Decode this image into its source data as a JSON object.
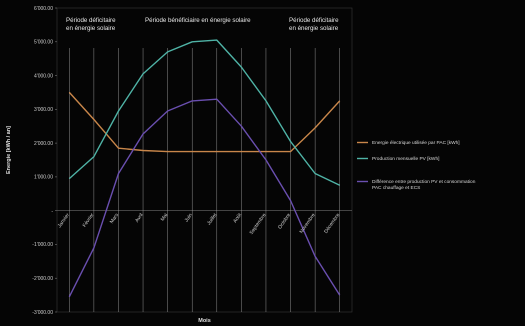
{
  "chart_data": {
    "type": "line",
    "categories": [
      "Janvier",
      "Février",
      "Mars",
      "Avril",
      "Mai",
      "Juin",
      "Juillet",
      "Août",
      "Septembre",
      "Octobre",
      "Novembre",
      "Décembre"
    ],
    "series": [
      {
        "name": "Energie électrique utilisée par PAC [kWh]",
        "color": "#c8864a",
        "values": [
          3500,
          2700,
          1850,
          1780,
          1750,
          1750,
          1750,
          1750,
          1750,
          1750,
          2450,
          3250
        ]
      },
      {
        "name": "Production mensuelle PV [kWh]",
        "color": "#4fb3a6",
        "values": [
          950,
          1600,
          2950,
          4050,
          4700,
          5000,
          5050,
          4250,
          3250,
          2050,
          1100,
          750
        ]
      },
      {
        "name": "Différence entre production PV et consommation PAC chauffage et ECS",
        "color": "#6a4fb0",
        "values": [
          -2550,
          -1100,
          1100,
          2270,
          2950,
          3250,
          3300,
          2500,
          1500,
          300,
          -1350,
          -2500
        ]
      }
    ],
    "ylim": [
      -3000,
      6000
    ],
    "yticks": [
      "6'000.00",
      "5'000.00",
      "4'000.00",
      "3'000.00",
      "2'000.00",
      "1'000.00",
      "-",
      "-1'000.00",
      "-2'000.00",
      "-3'000.00"
    ],
    "ylabel": "Energie [kWh / an]",
    "xlabel": "Mois",
    "grid": true,
    "legend_position": "right",
    "annotations": [
      "Période déficitaire en énergie solaire",
      "Période bénéficiaire en énergie solaire",
      "Période déficitaire en énergie solaire"
    ]
  }
}
